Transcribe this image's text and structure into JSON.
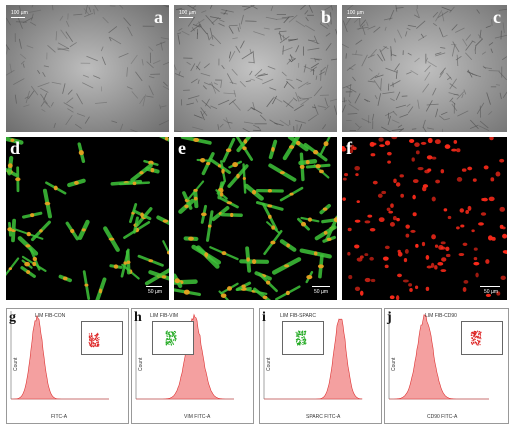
{
  "row1": [
    {
      "letter": "a",
      "scale": "100 µm"
    },
    {
      "letter": "b",
      "scale": "100 µm"
    },
    {
      "letter": "c",
      "scale": "100 µm"
    }
  ],
  "row2": [
    {
      "letter": "d",
      "scale": "50 µm"
    },
    {
      "letter": "e",
      "scale": "50 µm"
    },
    {
      "letter": "f",
      "scale": "50 µm"
    }
  ],
  "row3": [
    {
      "letter": "g",
      "title": "LIM FIB-CON",
      "xlabel": "FITC-A",
      "ylabel": "Count"
    },
    {
      "letter": "h",
      "title": "LIM FIB-VIM",
      "xlabel": "VIM FITC-A",
      "ylabel": "Count"
    },
    {
      "letter": "i",
      "title": "LIM FIB-SPARC",
      "xlabel": "SPARC FITC-A",
      "ylabel": "Count"
    },
    {
      "letter": "j",
      "title": "LIM FIB-CD90",
      "xlabel": "CD90 FITC-A",
      "ylabel": "Count"
    }
  ],
  "colors": {
    "fluor_green": "#3ec43a",
    "fluor_red": "#ff2a1a",
    "hist_fill": "#f4a0a0",
    "hist_stroke": "#d33"
  }
}
